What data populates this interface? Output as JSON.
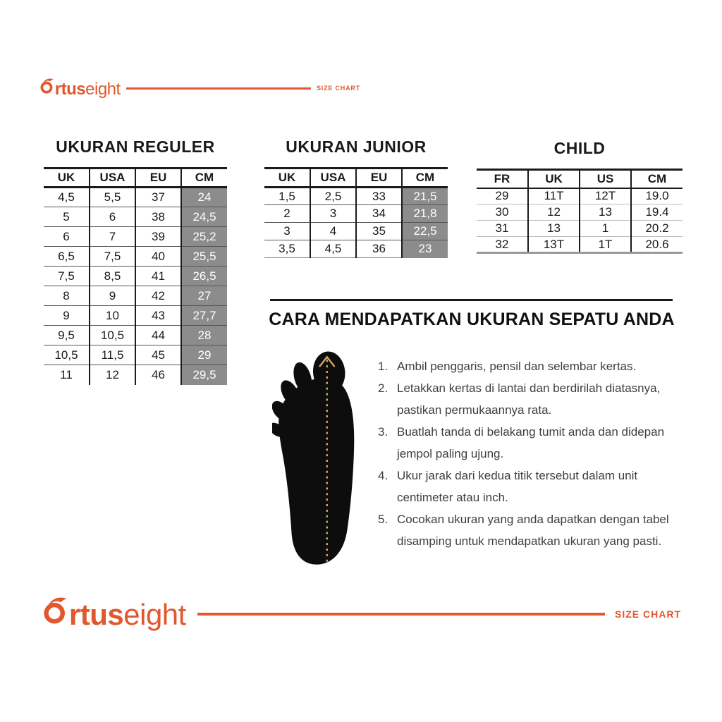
{
  "brand": {
    "logo_bold": "rtus",
    "logo_light": "eight",
    "size_chart_label": "SIZE CHART"
  },
  "tables": [
    {
      "id": "reguler",
      "title": "UKURAN REGULER",
      "columns": [
        "UK",
        "USA",
        "EU",
        "CM"
      ],
      "cm_highlight": true,
      "rows": [
        [
          "4,5",
          "5,5",
          "37",
          "24"
        ],
        [
          "5",
          "6",
          "38",
          "24,5"
        ],
        [
          "6",
          "7",
          "39",
          "25,2"
        ],
        [
          "6,5",
          "7,5",
          "40",
          "25,5"
        ],
        [
          "7,5",
          "8,5",
          "41",
          "26,5"
        ],
        [
          "8",
          "9",
          "42",
          "27"
        ],
        [
          "9",
          "10",
          "43",
          "27,7"
        ],
        [
          "9,5",
          "10,5",
          "44",
          "28"
        ],
        [
          "10,5",
          "11,5",
          "45",
          "29"
        ],
        [
          "11",
          "12",
          "46",
          "29,5"
        ]
      ]
    },
    {
      "id": "junior",
      "title": "UKURAN JUNIOR",
      "columns": [
        "UK",
        "USA",
        "EU",
        "CM"
      ],
      "cm_highlight": true,
      "rows": [
        [
          "1,5",
          "2,5",
          "33",
          "21,5"
        ],
        [
          "2",
          "3",
          "34",
          "21,8"
        ],
        [
          "3",
          "4",
          "35",
          "22,5"
        ],
        [
          "3,5",
          "4,5",
          "36",
          "23"
        ]
      ]
    },
    {
      "id": "child",
      "title": "CHILD",
      "columns": [
        "FR",
        "UK",
        "US",
        "CM"
      ],
      "cm_highlight": false,
      "rows": [
        [
          "29",
          "11T",
          "12T",
          "19.0"
        ],
        [
          "30",
          "12",
          "13",
          "19.4"
        ],
        [
          "31",
          "13",
          "1",
          "20.2"
        ],
        [
          "32",
          "13T",
          "1T",
          "20.6"
        ]
      ]
    }
  ],
  "howto": {
    "title": "CARA MENDAPATKAN UKURAN SEPATU ANDA",
    "steps": [
      "Ambil penggaris, pensil dan selembar kertas.",
      "Letakkan kertas di lantai dan berdirilah diatasnya, pastikan permukaannya rata.",
      "Buatlah tanda di belakang tumit anda dan didepan jempol paling ujung.",
      "Ukur jarak dari kedua titik tersebut dalam unit centimeter atau inch.",
      "Cocokan ukuran yang anda dapatkan dengan tabel disamping untuk mendapatkan ukuran yang pasti."
    ]
  },
  "colors": {
    "accent": "#E2572B",
    "cm_cell_bg": "#8C8C8C",
    "text": "#1A1A1A",
    "step_text": "#3F3F3F",
    "measure_dash": "#CBA65F"
  },
  "icons": {
    "logo_flame": "ortuseight-flame-o",
    "foot": "foot-sole-silhouette",
    "measure_line": "dashed-measure-line",
    "measure_arrow": "up-arrow"
  }
}
